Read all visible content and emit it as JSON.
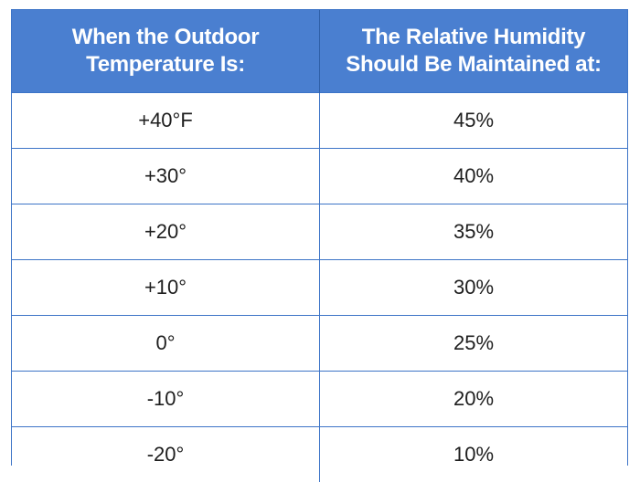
{
  "table": {
    "headers": [
      {
        "line1": "When the Outdoor",
        "line2": "Temperature Is:"
      },
      {
        "line1": "The Relative Humidity",
        "line2": "Should Be Maintained at:"
      }
    ],
    "rows": [
      {
        "temperature": "+40°F",
        "humidity": "45%"
      },
      {
        "temperature": "+30°",
        "humidity": "40%"
      },
      {
        "temperature": "+20°",
        "humidity": "35%"
      },
      {
        "temperature": "+10°",
        "humidity": "30%"
      },
      {
        "temperature": "0°",
        "humidity": "25%"
      },
      {
        "temperature": "-10°",
        "humidity": "20%"
      },
      {
        "temperature": "-20°",
        "humidity": "10%"
      }
    ]
  },
  "colors": {
    "header_background": "#4a7fd0",
    "header_text": "#ffffff",
    "border": "#3d74c7",
    "cell_text": "#1e1e1e"
  }
}
